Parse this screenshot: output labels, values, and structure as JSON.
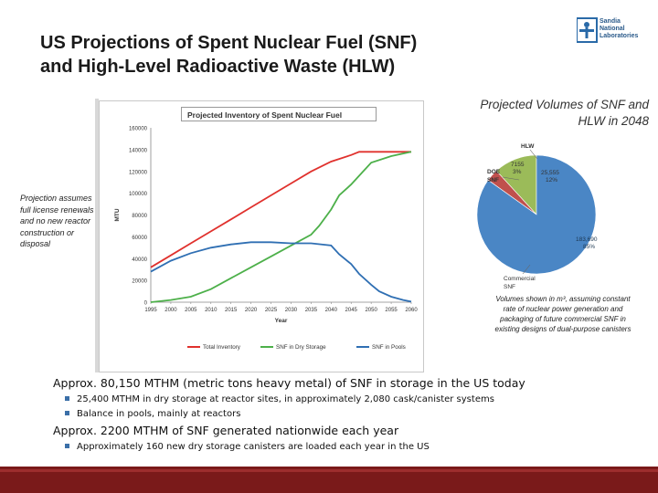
{
  "slide": {
    "title_line1": "US Projections of Spent Nuclear Fuel (SNF)",
    "title_line2": "and High-Level Radioactive Waste (HLW)",
    "logo_line1": "Sandia",
    "logo_line2": "National",
    "logo_line3": "Laboratories",
    "side_note": "Projection assumes full license renewals and no new reactor construction or disposal",
    "pie_title": "Projected Volumes of SNF and HLW in 2048",
    "volume_note": "Volumes shown in m³, assuming constant rate of nuclear power generation and packaging of future commercial SNF in existing designs of dual-purpose canisters",
    "bullets": [
      {
        "level": 1,
        "text": "Approx. 80,150 MTHM (metric tons heavy metal) of SNF in storage in the US today"
      },
      {
        "level": 2,
        "text": "25,400 MTHM in dry storage at reactor sites, in approximately 2,080 cask/canister systems"
      },
      {
        "level": 2,
        "text": "Balance in pools, mainly at reactors"
      },
      {
        "level": 1,
        "text": "Approx. 2200 MTHM of SNF generated nationwide each year"
      },
      {
        "level": 2,
        "text": "Approximately 160 new dry storage canisters are loaded each year in the US"
      }
    ]
  },
  "chart_data": [
    {
      "type": "line",
      "title": "Projected Inventory of Spent Nuclear Fuel",
      "xlabel": "Year",
      "ylabel": "MTU",
      "xlim": [
        1995,
        2060
      ],
      "ylim": [
        0,
        160000
      ],
      "xticks": [
        "1995",
        "2000",
        "2005",
        "2010",
        "2015",
        "2020",
        "2025",
        "2030",
        "2035",
        "2040",
        "2045",
        "2050",
        "2055",
        "2060"
      ],
      "yticks": [
        "0",
        "20000",
        "40000",
        "60000",
        "80000",
        "100000",
        "120000",
        "140000",
        "160000"
      ],
      "grid": false,
      "legend_position": "bottom",
      "colors": {
        "Total Inventory": "#e0312d",
        "SNF in Dry Storage": "#4db04a",
        "SNF in Pools": "#2f6fb3"
      },
      "series": [
        {
          "name": "Total Inventory",
          "x": [
            1995,
            2000,
            2005,
            2010,
            2015,
            2020,
            2025,
            2030,
            2035,
            2040,
            2045,
            2047,
            2050,
            2055,
            2060
          ],
          "values": [
            32000,
            43000,
            54000,
            65000,
            76000,
            87000,
            98000,
            109000,
            120000,
            129000,
            135000,
            138000,
            138000,
            138000,
            138000
          ]
        },
        {
          "name": "SNF in Dry Storage",
          "x": [
            1995,
            2000,
            2005,
            2010,
            2015,
            2020,
            2025,
            2030,
            2035,
            2037,
            2040,
            2042,
            2045,
            2047,
            2050,
            2055,
            2060
          ],
          "values": [
            0,
            2000,
            5000,
            12000,
            22000,
            32000,
            42000,
            52000,
            62000,
            70000,
            85000,
            98000,
            108000,
            116000,
            128000,
            134000,
            138000
          ]
        },
        {
          "name": "SNF in Pools",
          "x": [
            1995,
            2000,
            2005,
            2010,
            2015,
            2020,
            2025,
            2030,
            2035,
            2040,
            2042,
            2045,
            2047,
            2050,
            2052,
            2055,
            2058,
            2060
          ],
          "values": [
            28000,
            38000,
            45000,
            50000,
            53000,
            55000,
            55000,
            54000,
            54000,
            52000,
            44000,
            35000,
            26000,
            16000,
            10000,
            5000,
            2000,
            500
          ]
        }
      ]
    },
    {
      "type": "pie",
      "title": "Projected Volumes of SNF and HLW in 2048",
      "units": "m³",
      "slices": [
        {
          "label": "Commercial SNF",
          "value": 183690,
          "value_label": "183,690",
          "percent_label": "85%",
          "color": "#4a86c5"
        },
        {
          "label": "DOE SNF",
          "value": 7155,
          "value_label": "7155",
          "percent_label": "3%",
          "color": "#c0504d"
        },
        {
          "label": "HLW",
          "value": 25555,
          "value_label": "25,555",
          "percent_label": "12%",
          "color": "#9bbb59"
        }
      ]
    }
  ]
}
